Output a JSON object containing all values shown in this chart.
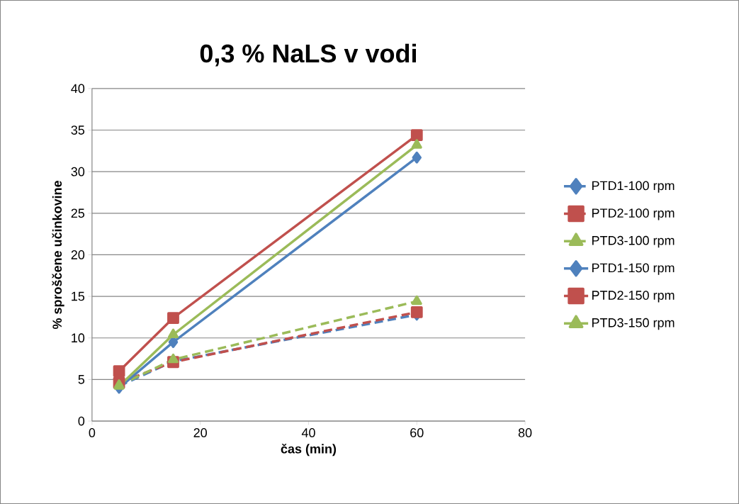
{
  "chart_data": {
    "type": "line",
    "title": "0,3 % NaLS v vodi",
    "xlabel": "čas (min)",
    "ylabel": "% sproščene učinkovine",
    "x": [
      5,
      15,
      60
    ],
    "series": [
      {
        "name": "PTD1-100 rpm",
        "color": "#4f81bd",
        "marker": "diamond",
        "line_style": "dashed",
        "values": [
          4.2,
          7.2,
          12.8
        ]
      },
      {
        "name": "PTD2-100 rpm",
        "color": "#c0504d",
        "marker": "square",
        "line_style": "dashed",
        "values": [
          4.6,
          7.1,
          13.1
        ]
      },
      {
        "name": "PTD3-100 rpm",
        "color": "#9bbb59",
        "marker": "triangle",
        "line_style": "dashed",
        "values": [
          4.3,
          7.4,
          14.4
        ]
      },
      {
        "name": "PTD1-150 rpm",
        "color": "#4f81bd",
        "marker": "diamond",
        "line_style": "solid",
        "values": [
          4.0,
          9.5,
          31.7
        ]
      },
      {
        "name": "PTD2-150 rpm",
        "color": "#c0504d",
        "marker": "square",
        "line_style": "solid",
        "values": [
          6.0,
          12.4,
          34.4
        ]
      },
      {
        "name": "PTD3-150 rpm",
        "color": "#9bbb59",
        "marker": "triangle",
        "line_style": "solid",
        "values": [
          4.2,
          10.4,
          33.2
        ]
      }
    ],
    "xlim": [
      0,
      80
    ],
    "xticks": [
      0,
      20,
      40,
      60,
      80
    ],
    "ylim": [
      0,
      40
    ],
    "yticks": [
      0,
      5,
      10,
      15,
      20,
      25,
      30,
      35,
      40
    ],
    "grid": "y",
    "legend": "right"
  }
}
